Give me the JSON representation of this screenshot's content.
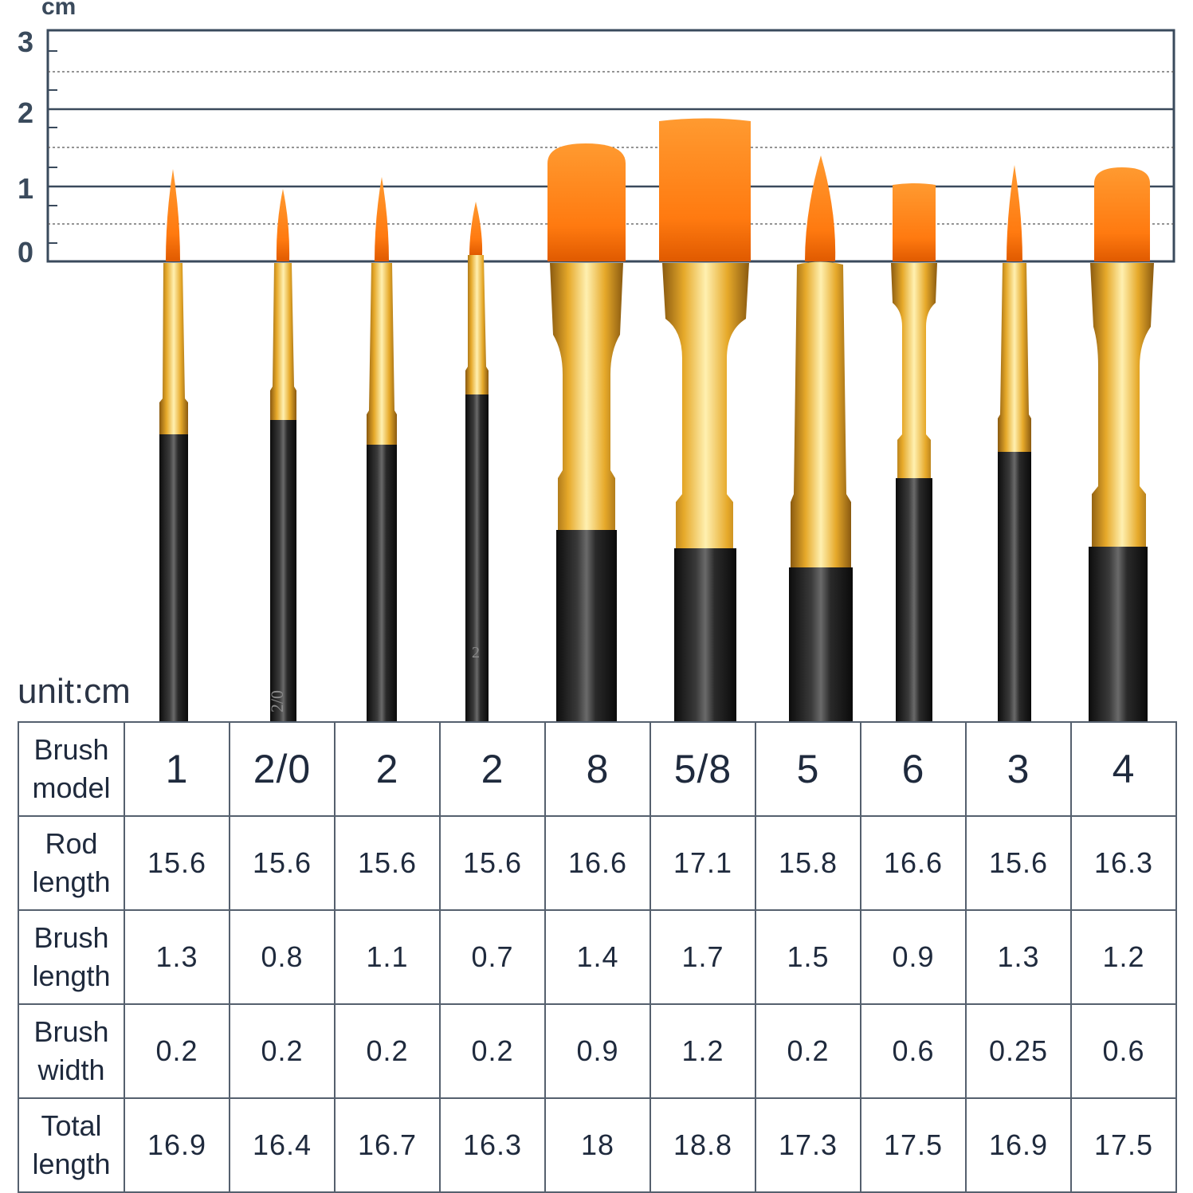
{
  "ruler": {
    "unit": "cm",
    "labels": [
      "3",
      "2",
      "1",
      "0"
    ]
  },
  "unit_label": "unit:cm",
  "brushes": [
    {
      "handle_print": "",
      "tip": "round"
    },
    {
      "handle_print": "2/0",
      "tip": "round"
    },
    {
      "handle_print": "",
      "tip": "round"
    },
    {
      "handle_print": "2",
      "tip": "round"
    },
    {
      "handle_print": "",
      "tip": "filbert"
    },
    {
      "handle_print": "",
      "tip": "flat"
    },
    {
      "handle_print": "",
      "tip": "round"
    },
    {
      "handle_print": "",
      "tip": "flat"
    },
    {
      "handle_print": "",
      "tip": "round"
    },
    {
      "handle_print": "",
      "tip": "filbert"
    }
  ],
  "colors": {
    "bristle": "#ff8c1a",
    "ferrule": "#e0a020",
    "handle": "#1c1c1c",
    "ruler_line": "#3a4a5c",
    "text": "#1f2a3d"
  },
  "table": {
    "rows": [
      {
        "label": "Brush\nmodel",
        "values": [
          "1",
          "2/0",
          "2",
          "2",
          "8",
          "5/8",
          "5",
          "6",
          "3",
          "4"
        ]
      },
      {
        "label": "Rod\nlength",
        "values": [
          "15.6",
          "15.6",
          "15.6",
          "15.6",
          "16.6",
          "17.1",
          "15.8",
          "16.6",
          "15.6",
          "16.3"
        ]
      },
      {
        "label": "Brush\nlength",
        "values": [
          "1.3",
          "0.8",
          "1.1",
          "0.7",
          "1.4",
          "1.7",
          "1.5",
          "0.9",
          "1.3",
          "1.2"
        ]
      },
      {
        "label": "Brush\nwidth",
        "values": [
          "0.2",
          "0.2",
          "0.2",
          "0.2",
          "0.9",
          "1.2",
          "0.2",
          "0.6",
          "0.25",
          "0.6"
        ]
      },
      {
        "label": "Total\nlength",
        "values": [
          "16.9",
          "16.4",
          "16.7",
          "16.3",
          "18",
          "18.8",
          "17.3",
          "17.5",
          "16.9",
          "17.5"
        ]
      }
    ]
  }
}
